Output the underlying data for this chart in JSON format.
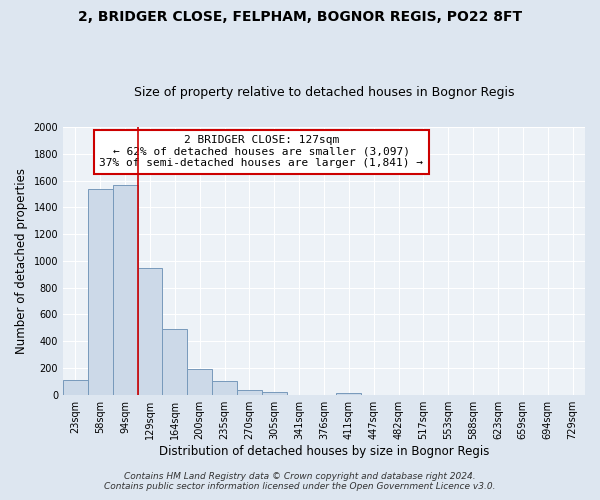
{
  "title": "2, BRIDGER CLOSE, FELPHAM, BOGNOR REGIS, PO22 8FT",
  "subtitle": "Size of property relative to detached houses in Bognor Regis",
  "xlabel": "Distribution of detached houses by size in Bognor Regis",
  "ylabel": "Number of detached properties",
  "bar_color": "#ccd9e8",
  "bar_edge_color": "#7799bb",
  "categories": [
    "23sqm",
    "58sqm",
    "94sqm",
    "129sqm",
    "164sqm",
    "200sqm",
    "235sqm",
    "270sqm",
    "305sqm",
    "341sqm",
    "376sqm",
    "411sqm",
    "447sqm",
    "482sqm",
    "517sqm",
    "553sqm",
    "588sqm",
    "623sqm",
    "659sqm",
    "694sqm",
    "729sqm"
  ],
  "values": [
    110,
    1540,
    1570,
    950,
    490,
    190,
    100,
    35,
    20,
    0,
    0,
    15,
    0,
    0,
    0,
    0,
    0,
    0,
    0,
    0,
    0
  ],
  "ylim": [
    0,
    2000
  ],
  "yticks": [
    0,
    200,
    400,
    600,
    800,
    1000,
    1200,
    1400,
    1600,
    1800,
    2000
  ],
  "red_line_index": 2,
  "annotation_line1": "2 BRIDGER CLOSE: 127sqm",
  "annotation_line2": "← 62% of detached houses are smaller (3,097)",
  "annotation_line3": "37% of semi-detached houses are larger (1,841) →",
  "annotation_box_color": "#ffffff",
  "annotation_box_edge_color": "#cc0000",
  "footer_line1": "Contains HM Land Registry data © Crown copyright and database right 2024.",
  "footer_line2": "Contains public sector information licensed under the Open Government Licence v3.0.",
  "bg_color": "#dde6f0",
  "plot_bg_color": "#edf2f7",
  "grid_color": "#ffffff",
  "title_fontsize": 10,
  "subtitle_fontsize": 9,
  "axis_label_fontsize": 8.5,
  "tick_fontsize": 7,
  "annotation_fontsize": 8,
  "footer_fontsize": 6.5
}
